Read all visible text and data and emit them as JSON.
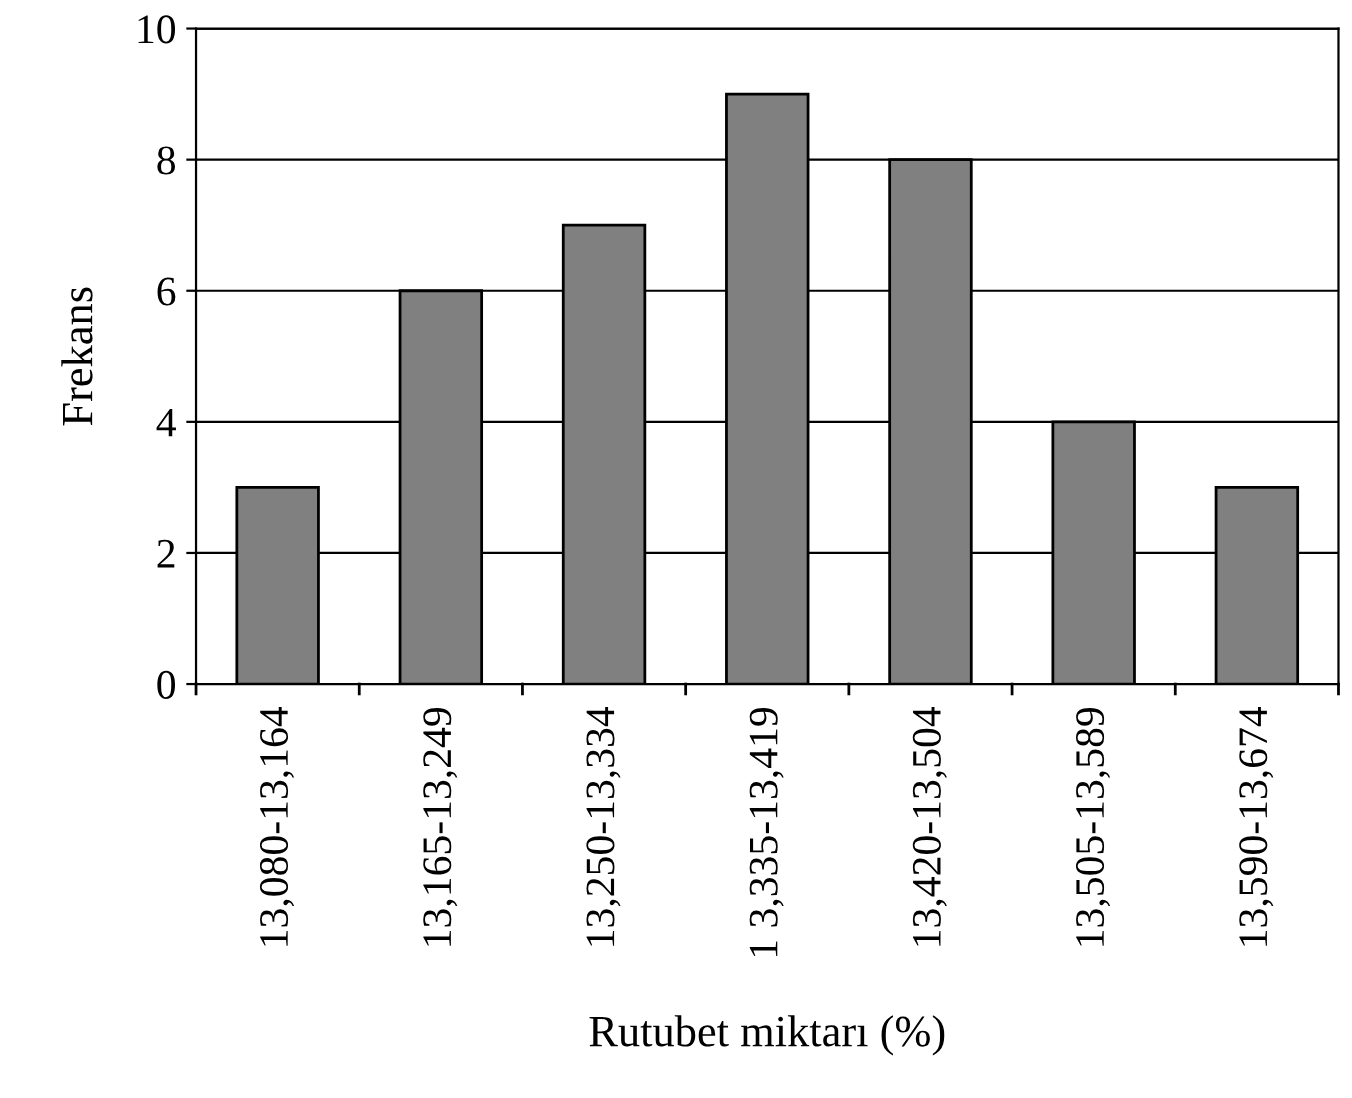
{
  "chart_data": {
    "type": "bar",
    "xlabel": "Rutubet miktarı (%)",
    "ylabel": "Frekans",
    "categories": [
      "13,080-13,164",
      "13,165-13,249",
      "13,250-13,334",
      "1 3,335-13,419",
      "13,420-13,504",
      "13,505-13,589",
      "13,590-13,674"
    ],
    "values": [
      3,
      6,
      7,
      9,
      8,
      4,
      3
    ],
    "color": "#808080",
    "ylim": [
      0,
      10
    ],
    "yticks": [
      0,
      2,
      4,
      6,
      8,
      10
    ],
    "grid": "y"
  }
}
